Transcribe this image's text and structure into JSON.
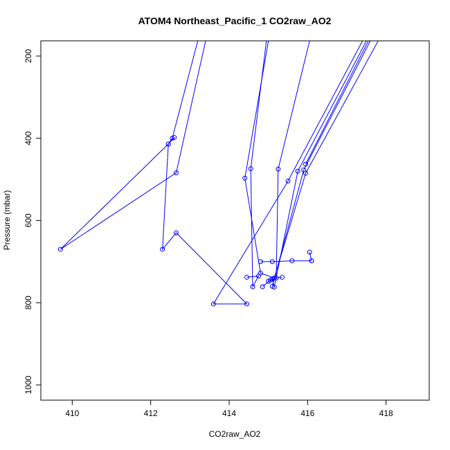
{
  "chart_data": {
    "type": "line",
    "title": "ATOM4 Northeast_Pacific_1 CO2raw_AO2",
    "xlabel": "CO2raw_AO2",
    "ylabel": "Pressure (mbar)",
    "xlim": [
      409.2,
      419.1
    ],
    "ylim": [
      1037,
      163
    ],
    "y_reversed": true,
    "x_ticks": [
      410,
      412,
      414,
      416,
      418
    ],
    "y_ticks": [
      200,
      400,
      600,
      800,
      1000
    ],
    "color": "#0000ff",
    "series": [
      {
        "markers": "open-circle",
        "points": [
          {
            "x": 413.2,
            "y": 163
          },
          {
            "x": 412.55,
            "y": 400
          },
          {
            "x": 412.45,
            "y": 414
          },
          {
            "x": 412.3,
            "y": 670
          },
          {
            "x": 412.65,
            "y": 630
          },
          {
            "x": 414.45,
            "y": 803
          },
          {
            "x": 413.6,
            "y": 803
          },
          {
            "x": 415.5,
            "y": 504
          },
          {
            "x": 417.4,
            "y": 163
          }
        ]
      },
      {
        "markers": "open-circle",
        "points": [
          {
            "x": 413.4,
            "y": 163
          },
          {
            "x": 412.65,
            "y": 484
          },
          {
            "x": 409.7,
            "y": 670
          },
          {
            "x": 412.45,
            "y": 414
          },
          {
            "x": 412.6,
            "y": 398
          }
        ]
      },
      {
        "markers": "open-circle",
        "points": [
          {
            "x": 414.45,
            "y": 738
          },
          {
            "x": 414.75,
            "y": 735
          },
          {
            "x": 414.6,
            "y": 761
          },
          {
            "x": 414.55,
            "y": 474
          },
          {
            "x": 414.95,
            "y": 163
          }
        ]
      },
      {
        "markers": "open-circle",
        "points": [
          {
            "x": 415.0,
            "y": 163
          },
          {
            "x": 414.4,
            "y": 497
          },
          {
            "x": 414.8,
            "y": 728
          },
          {
            "x": 415.15,
            "y": 740
          },
          {
            "x": 415.35,
            "y": 738
          }
        ]
      },
      {
        "markers": "open-circle",
        "points": [
          {
            "x": 414.8,
            "y": 700
          },
          {
            "x": 415.1,
            "y": 700
          },
          {
            "x": 415.6,
            "y": 698
          },
          {
            "x": 416.1,
            "y": 698
          }
        ]
      },
      {
        "markers": "open-circle",
        "points": [
          {
            "x": 414.85,
            "y": 761
          },
          {
            "x": 415.05,
            "y": 745
          },
          {
            "x": 415.2,
            "y": 740
          },
          {
            "x": 415.25,
            "y": 475
          },
          {
            "x": 416.05,
            "y": 163
          }
        ]
      },
      {
        "markers": "open-circle",
        "points": [
          {
            "x": 415.0,
            "y": 748
          },
          {
            "x": 415.1,
            "y": 742
          },
          {
            "x": 415.15,
            "y": 762
          },
          {
            "x": 415.75,
            "y": 480
          },
          {
            "x": 417.5,
            "y": 163
          }
        ]
      },
      {
        "markers": "open-circle",
        "points": [
          {
            "x": 415.1,
            "y": 760
          },
          {
            "x": 415.9,
            "y": 477
          },
          {
            "x": 417.6,
            "y": 163
          }
        ]
      },
      {
        "markers": "open-circle",
        "points": [
          {
            "x": 415.15,
            "y": 740
          },
          {
            "x": 415.95,
            "y": 485
          },
          {
            "x": 417.8,
            "y": 163
          }
        ]
      },
      {
        "markers": "open-circle",
        "points": [
          {
            "x": 416.1,
            "y": 698
          },
          {
            "x": 416.05,
            "y": 677
          }
        ]
      },
      {
        "markers": "open-circle",
        "points": [
          {
            "x": 415.95,
            "y": 463
          },
          {
            "x": 417.55,
            "y": 163
          }
        ]
      }
    ]
  }
}
